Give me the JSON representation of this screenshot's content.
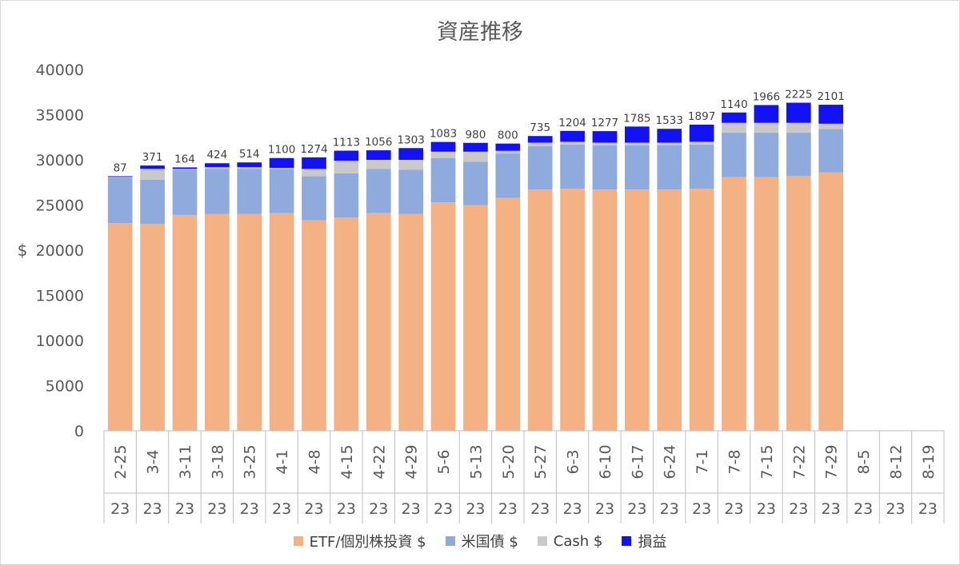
{
  "chart_data": {
    "type": "bar",
    "stacked": true,
    "title": "資産推移",
    "ylabel": "$",
    "ylim": [
      0,
      40000
    ],
    "yticks": [
      0,
      5000,
      10000,
      15000,
      20000,
      25000,
      30000,
      35000,
      40000
    ],
    "grid": false,
    "legend_position": "bottom",
    "categories": [
      "2-25",
      "3-4",
      "3-11",
      "3-18",
      "3-25",
      "4-1",
      "4-8",
      "4-15",
      "4-22",
      "4-29",
      "5-6",
      "5-13",
      "5-20",
      "5-27",
      "6-3",
      "6-10",
      "6-17",
      "6-24",
      "7-1",
      "7-8",
      "7-15",
      "7-22",
      "7-29",
      "8-5",
      "8-12",
      "8-19"
    ],
    "category_group_labels": [
      "23",
      "23",
      "23",
      "23",
      "23",
      "23",
      "23",
      "23",
      "23",
      "23",
      "23",
      "23",
      "23",
      "23",
      "23",
      "23",
      "23",
      "23",
      "23",
      "23",
      "23",
      "23",
      "23",
      "23",
      "23",
      "23"
    ],
    "series": [
      {
        "name": "ETF/個別株投資 $",
        "color": "#f4b183",
        "values": [
          23000,
          22900,
          23900,
          24000,
          24000,
          24100,
          23300,
          23600,
          24100,
          24000,
          25300,
          25000,
          25800,
          26700,
          26800,
          26700,
          26700,
          26700,
          26800,
          28100,
          28100,
          28200,
          28600,
          null,
          null,
          null
        ]
      },
      {
        "name": "米国債 $",
        "color": "#8faadc",
        "values": [
          5000,
          4900,
          5000,
          5000,
          5000,
          4900,
          4900,
          4900,
          4900,
          4900,
          4900,
          4800,
          4900,
          4800,
          4900,
          4900,
          4900,
          4900,
          4900,
          4900,
          4900,
          4800,
          4800,
          null,
          null,
          null
        ]
      },
      {
        "name": "Cash $",
        "color": "#c9c9c9",
        "values": [
          100,
          1200,
          100,
          200,
          200,
          100,
          800,
          1400,
          1000,
          1100,
          700,
          1100,
          300,
          400,
          300,
          300,
          300,
          300,
          300,
          1100,
          1100,
          1100,
          600,
          null,
          null,
          null
        ]
      },
      {
        "name": "損益",
        "color": "#1212f5",
        "values": [
          87,
          371,
          164,
          424,
          514,
          1100,
          1274,
          1113,
          1056,
          1303,
          1083,
          980,
          800,
          735,
          1204,
          1277,
          1785,
          1533,
          1897,
          1140,
          1966,
          2225,
          2101,
          null,
          null,
          null
        ]
      }
    ],
    "data_labels": [
      "87",
      "371",
      "164",
      "424",
      "514",
      "1100",
      "1274",
      "1113",
      "1056",
      "1303",
      "1083",
      "980",
      "800",
      "735",
      "1204",
      "1277",
      "1785",
      "1533",
      "1897",
      "1140",
      "1966",
      "2225",
      "2101",
      "",
      "",
      ""
    ]
  }
}
